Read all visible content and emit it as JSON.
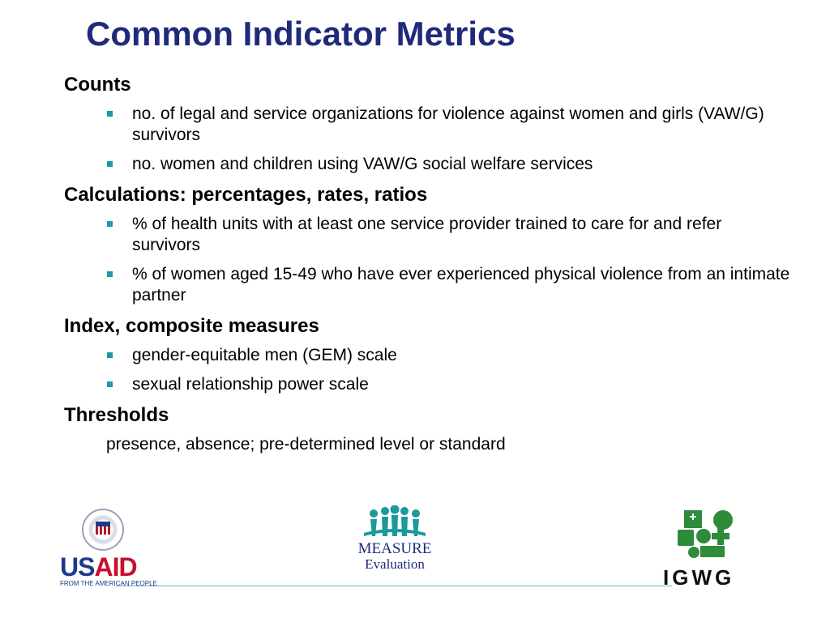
{
  "slide": {
    "title": "Common Indicator Metrics",
    "sections": [
      {
        "heading": "Counts",
        "bullets": [
          "no. of legal and service organizations for violence against women and girls (VAW/G) survivors",
          "no. women and children using VAW/G social welfare services"
        ]
      },
      {
        "heading": "Calculations: percentages, rates, ratios",
        "bullets": [
          "% of health units with at least one service provider trained to care for and refer survivors",
          "% of women aged 15-49 who have ever experienced physical violence from an intimate partner"
        ]
      },
      {
        "heading": "Index, composite measures",
        "bullets": [
          "gender-equitable men (GEM) scale",
          "sexual relationship power scale"
        ]
      },
      {
        "heading": "Thresholds",
        "text": "presence, absence; pre-determined level or standard"
      }
    ]
  },
  "logos": {
    "usaid": {
      "word_us": "US",
      "word_aid": "AID",
      "tagline": "FROM THE AMERICAN PEOPLE"
    },
    "measure": {
      "line1": "MEASURE",
      "line2": "Evaluation"
    },
    "igwg": {
      "word": "IGWG"
    }
  },
  "colors": {
    "title": "#1f2a7a",
    "bullet": "#199aa6",
    "usaid_blue": "#1c3a8a",
    "usaid_red": "#c8102e",
    "measure_teal": "#1a9a9a",
    "igwg_green": "#2e8b3a"
  }
}
